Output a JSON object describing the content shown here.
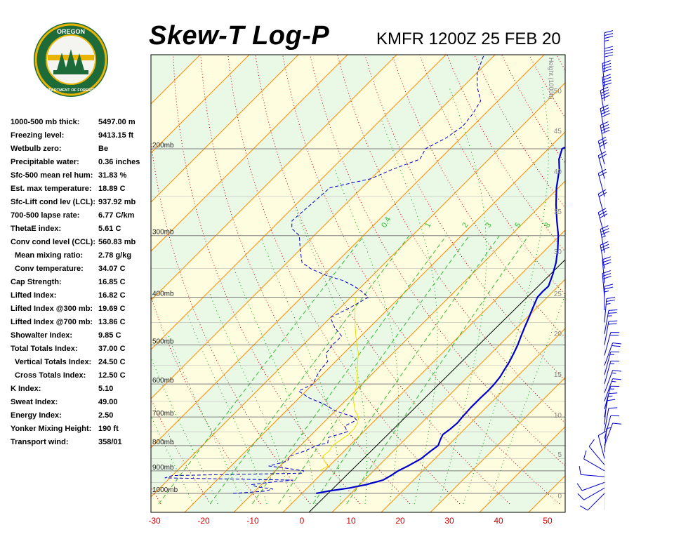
{
  "header": {
    "title": "Skew-T Log-P",
    "station_time": "KMFR 1200Z 25 FEB 20"
  },
  "logo": {
    "top_text": "OREGON",
    "bottom_text": "DEPARTMENT OF FORESTRY"
  },
  "stats": [
    {
      "label": "1000-500 mb thick:",
      "value": "5497.00 m"
    },
    {
      "label": "Freezing level:",
      "value": "9413.15 ft"
    },
    {
      "label": "Wetbulb zero:",
      "value": "Be"
    },
    {
      "label": "Precipitable water:",
      "value": "0.36 inches"
    },
    {
      "label": "Sfc-500 mean rel hum:",
      "value": "31.83 %"
    },
    {
      "label": "Est. max temperature:",
      "value": "18.89 C"
    },
    {
      "label": "Sfc-Lift cond lev (LCL):",
      "value": "937.92 mb"
    },
    {
      "label": "700-500 lapse rate:",
      "value": "6.77 C/km"
    },
    {
      "label": "ThetaE index:",
      "value": "5.61 C"
    },
    {
      "label": "Conv cond level (CCL):",
      "value": "560.83 mb"
    },
    {
      "label": "Mean mixing ratio:",
      "value": "2.78 g/kg",
      "indent": true
    },
    {
      "label": "Conv temperature:",
      "value": "34.07 C",
      "indent": true
    },
    {
      "label": "Cap Strength:",
      "value": "16.85 C"
    },
    {
      "label": "Lifted Index:",
      "value": "16.82 C"
    },
    {
      "label": "Lifted Index @300 mb:",
      "value": "19.69 C"
    },
    {
      "label": "Lifted Index @700 mb:",
      "value": "13.86 C"
    },
    {
      "label": "Showalter Index:",
      "value": "9.85 C"
    },
    {
      "label": "Total Totals Index:",
      "value": "37.00 C"
    },
    {
      "label": "Vertical Totals Index:",
      "value": "24.50 C",
      "indent": true
    },
    {
      "label": "Cross Totals Index:",
      "value": "12.50 C",
      "indent": true
    },
    {
      "label": "K Index:",
      "value": "5.10"
    },
    {
      "label": "Sweat Index:",
      "value": "49.00"
    },
    {
      "label": "Energy Index:",
      "value": "2.50"
    },
    {
      "label": "Yonker Mixing Height:",
      "value": "190 ft"
    },
    {
      "label": "Transport wind:",
      "value": "358/01"
    }
  ],
  "chart_data": {
    "type": "line",
    "xlabel": "",
    "ylabel": "",
    "xlim": [
      -30,
      53
    ],
    "x_ticks": [
      -30,
      -20,
      -10,
      0,
      10,
      20,
      30,
      40,
      50
    ],
    "pressure_labels": [
      {
        "p": 200,
        "label": "200mb"
      },
      {
        "p": 300,
        "label": "300mb"
      },
      {
        "p": 400,
        "label": "400mb"
      },
      {
        "p": 500,
        "label": "500mb"
      },
      {
        "p": 600,
        "label": "600mb"
      },
      {
        "p": 700,
        "label": "700mb"
      },
      {
        "p": 800,
        "label": "800mb"
      },
      {
        "p": 900,
        "label": "900mb"
      },
      {
        "p": 1000,
        "label": "1000mb"
      }
    ],
    "height_axis_label": "Height (1000ft)",
    "height_ticks": [
      "0",
      "5",
      "10",
      "15",
      "20",
      "25",
      "30",
      "35",
      "40",
      "45",
      "50"
    ],
    "mixing_ratio_labels": [
      "0.4",
      "1",
      "2",
      "3",
      "5",
      "8"
    ],
    "colors": {
      "plot_bg": "#fffde0",
      "band": "#eaf8e6",
      "isobar": "#808080",
      "isotherm": "#ff8c00",
      "dry_adiabat": "#cc0000",
      "moist_adiabat": "#00a000",
      "mixing_ratio": "#33bb33",
      "temperature": "#0000cc",
      "dewpoint": "#0000cc",
      "parcel": "#e8e000",
      "axis_label": "#cc0000",
      "wind": "#0000cc"
    },
    "series": [
      {
        "key": "temperature",
        "points": [
          [
            1000,
            2.9
          ],
          [
            990,
            4.8
          ],
          [
            975,
            8.6
          ],
          [
            960,
            11.3
          ],
          [
            940,
            13.8
          ],
          [
            920,
            14.5
          ],
          [
            900,
            15.0
          ],
          [
            880,
            16.0
          ],
          [
            850,
            17.2
          ],
          [
            820,
            17.6
          ],
          [
            800,
            18.0
          ],
          [
            780,
            17.3
          ],
          [
            760,
            16.7
          ],
          [
            740,
            17.1
          ],
          [
            720,
            17.3
          ],
          [
            700,
            17.1
          ],
          [
            670,
            16.9
          ],
          [
            640,
            16.9
          ],
          [
            620,
            17.0
          ],
          [
            600,
            16.9
          ],
          [
            580,
            16.6
          ],
          [
            560,
            16.0
          ],
          [
            540,
            15.4
          ],
          [
            520,
            14.6
          ],
          [
            500,
            13.7
          ],
          [
            480,
            12.6
          ],
          [
            460,
            11.5
          ],
          [
            440,
            10.4
          ],
          [
            420,
            9.2
          ],
          [
            400,
            8.0
          ],
          [
            390,
            7.9
          ],
          [
            380,
            8.0
          ],
          [
            360,
            6.5
          ],
          [
            340,
            4.7
          ],
          [
            320,
            2.4
          ],
          [
            300,
            -0.3
          ],
          [
            280,
            -3.6
          ],
          [
            260,
            -7.0
          ],
          [
            240,
            -10.4
          ],
          [
            220,
            -13.6
          ],
          [
            210,
            -15.7
          ],
          [
            200,
            -17.2
          ],
          [
            195,
            -16.0
          ],
          [
            190,
            -14.0
          ],
          [
            185,
            -12.8
          ],
          [
            182,
            -11.5
          ],
          [
            175,
            -10.5
          ],
          [
            170,
            -7.0
          ],
          [
            162,
            -3.3
          ],
          [
            158,
            -2.3
          ],
          [
            152,
            -0.9
          ],
          [
            146,
            0.8
          ],
          [
            140,
            1.7
          ],
          [
            134,
            3.8
          ],
          [
            128,
            5.3
          ],
          [
            124,
            6.6
          ]
        ]
      },
      {
        "key": "dewpoint",
        "points": [
          [
            1000,
            -14.0
          ],
          [
            990,
            -8.0
          ],
          [
            980,
            -6.8
          ],
          [
            970,
            -10.5
          ],
          [
            960,
            -12.0
          ],
          [
            950,
            -9.0
          ],
          [
            940,
            -4.5
          ],
          [
            930,
            -31.0
          ],
          [
            920,
            -30.0
          ],
          [
            910,
            -4.0
          ],
          [
            900,
            -4.2
          ],
          [
            890,
            -8.0
          ],
          [
            880,
            -12.3
          ],
          [
            860,
            -9.5
          ],
          [
            840,
            -10.0
          ],
          [
            820,
            -8.0
          ],
          [
            800,
            -6.8
          ],
          [
            790,
            -5.0
          ],
          [
            770,
            -6.0
          ],
          [
            750,
            -3.3
          ],
          [
            730,
            -5.0
          ],
          [
            710,
            -3.8
          ],
          [
            700,
            -5.0
          ],
          [
            680,
            -10.0
          ],
          [
            660,
            -13.5
          ],
          [
            640,
            -18.0
          ],
          [
            620,
            -21.5
          ],
          [
            600,
            -20.0
          ],
          [
            580,
            -20.8
          ],
          [
            560,
            -21.4
          ],
          [
            540,
            -21.6
          ],
          [
            520,
            -23.6
          ],
          [
            500,
            -24.0
          ],
          [
            480,
            -23.9
          ],
          [
            460,
            -27.2
          ],
          [
            440,
            -30.0
          ],
          [
            420,
            -28.0
          ],
          [
            400,
            -26.4
          ],
          [
            390,
            -28.8
          ],
          [
            380,
            -31.5
          ],
          [
            370,
            -35.0
          ],
          [
            360,
            -40.0
          ],
          [
            350,
            -44.0
          ],
          [
            340,
            -47.0
          ],
          [
            320,
            -50.0
          ],
          [
            300,
            -53.0
          ],
          [
            290,
            -56.0
          ],
          [
            280,
            -57.5
          ],
          [
            260,
            -57.0
          ],
          [
            240,
            -56.5
          ],
          [
            230,
            -50.0
          ],
          [
            220,
            -47.5
          ],
          [
            210,
            -44.0
          ],
          [
            200,
            -45.0
          ],
          [
            190,
            -43.0
          ],
          [
            180,
            -42.0
          ],
          [
            170,
            -42.5
          ],
          [
            160,
            -43.5
          ],
          [
            150,
            -47.0
          ],
          [
            140,
            -50.0
          ],
          [
            130,
            -52.0
          ],
          [
            124,
            -53.0
          ]
        ]
      },
      {
        "key": "parcel",
        "points": [
          [
            900,
            -1.0
          ],
          [
            880,
            -0.3
          ],
          [
            860,
            -2.0
          ],
          [
            840,
            -3.3
          ],
          [
            820,
            -3.1
          ],
          [
            800,
            -3.5
          ],
          [
            780,
            -3.0
          ],
          [
            760,
            -2.5
          ],
          [
            740,
            -2.5
          ],
          [
            720,
            -3.0
          ],
          [
            700,
            -4.0
          ],
          [
            680,
            -6.0
          ],
          [
            660,
            -7.5
          ],
          [
            640,
            -9.0
          ],
          [
            620,
            -10.0
          ],
          [
            600,
            -11.0
          ],
          [
            580,
            -12.5
          ],
          [
            560,
            -14.0
          ],
          [
            540,
            -15.5
          ],
          [
            520,
            -17.0
          ],
          [
            500,
            -19.0
          ],
          [
            480,
            -21.0
          ],
          [
            460,
            -23.0
          ],
          [
            440,
            -25.0
          ],
          [
            420,
            -27.0
          ],
          [
            400,
            -29.0
          ]
        ]
      }
    ],
    "wind_barbs": [
      {
        "p": 1000,
        "dir": 225,
        "spd": 10
      },
      {
        "p": 975,
        "dir": 240,
        "spd": 10
      },
      {
        "p": 950,
        "dir": 250,
        "spd": 10
      },
      {
        "p": 925,
        "dir": 275,
        "spd": 10
      },
      {
        "p": 900,
        "dir": 300,
        "spd": 10
      },
      {
        "p": 875,
        "dir": 320,
        "spd": 10
      },
      {
        "p": 850,
        "dir": 345,
        "spd": 10
      },
      {
        "p": 825,
        "dir": 5,
        "spd": 5
      },
      {
        "p": 800,
        "dir": 20,
        "spd": 10
      },
      {
        "p": 775,
        "dir": 15,
        "spd": 10
      },
      {
        "p": 750,
        "dir": 10,
        "spd": 10
      },
      {
        "p": 725,
        "dir": 5,
        "spd": 10
      },
      {
        "p": 700,
        "dir": 10,
        "spd": 15
      },
      {
        "p": 675,
        "dir": 15,
        "spd": 15
      },
      {
        "p": 650,
        "dir": 20,
        "spd": 15
      },
      {
        "p": 625,
        "dir": 20,
        "spd": 15
      },
      {
        "p": 600,
        "dir": 15,
        "spd": 15
      },
      {
        "p": 575,
        "dir": 15,
        "spd": 15
      },
      {
        "p": 550,
        "dir": 20,
        "spd": 20
      },
      {
        "p": 525,
        "dir": 15,
        "spd": 20
      },
      {
        "p": 500,
        "dir": 10,
        "spd": 20
      },
      {
        "p": 475,
        "dir": 10,
        "spd": 25
      },
      {
        "p": 450,
        "dir": 5,
        "spd": 25
      },
      {
        "p": 425,
        "dir": 0,
        "spd": 25
      },
      {
        "p": 400,
        "dir": 355,
        "spd": 30
      },
      {
        "p": 375,
        "dir": 355,
        "spd": 30
      },
      {
        "p": 350,
        "dir": 350,
        "spd": 30
      },
      {
        "p": 325,
        "dir": 350,
        "spd": 35
      },
      {
        "p": 300,
        "dir": 345,
        "spd": 30
      },
      {
        "p": 275,
        "dir": 345,
        "spd": 20
      },
      {
        "p": 250,
        "dir": 345,
        "spd": 20
      },
      {
        "p": 230,
        "dir": 345,
        "spd": 20
      },
      {
        "p": 215,
        "dir": 345,
        "spd": 30
      },
      {
        "p": 200,
        "dir": 350,
        "spd": 40
      },
      {
        "p": 185,
        "dir": 350,
        "spd": 40
      },
      {
        "p": 170,
        "dir": 350,
        "spd": 40
      },
      {
        "p": 160,
        "dir": 355,
        "spd": 40
      },
      {
        "p": 150,
        "dir": 355,
        "spd": 40
      },
      {
        "p": 140,
        "dir": 0,
        "spd": 40
      },
      {
        "p": 130,
        "dir": 0,
        "spd": 35
      }
    ]
  }
}
